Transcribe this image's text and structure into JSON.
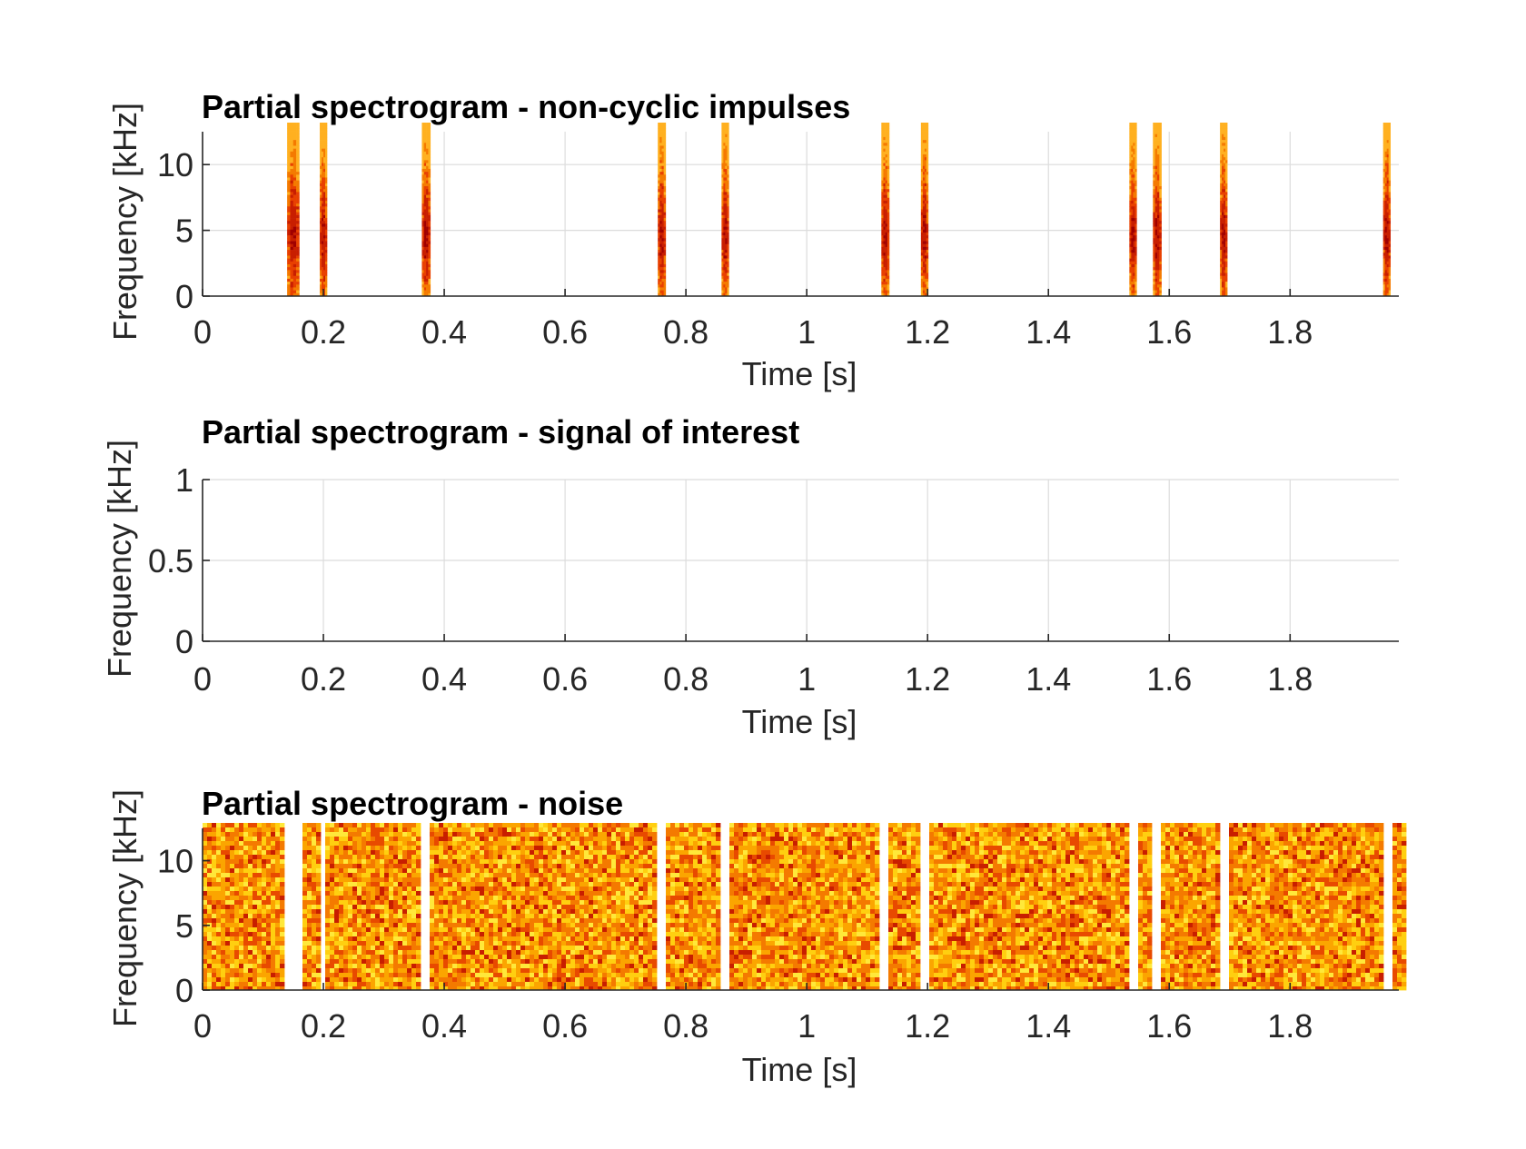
{
  "chart_data": [
    {
      "type": "heatmap",
      "variant": "impulses",
      "title": "Partial spectrogram - non-cyclic impulses",
      "xlabel": "Time [s]",
      "ylabel": "Frequency [kHz]",
      "xlim": [
        0,
        1.98
      ],
      "ylim": [
        0,
        12.5
      ],
      "xticks": [
        0,
        0.2,
        0.4,
        0.6,
        0.8,
        1,
        1.2,
        1.4,
        1.6,
        1.8
      ],
      "xtick_labels": [
        "0",
        "0.2",
        "0.4",
        "0.6",
        "0.8",
        "1",
        "1.2",
        "1.4",
        "1.6",
        "1.8"
      ],
      "yticks": [
        0,
        5,
        10
      ],
      "ytick_labels": [
        "0",
        "5",
        "10"
      ],
      "grid": true,
      "impulse_times": [
        0.15,
        0.2,
        0.37,
        0.76,
        0.865,
        1.13,
        1.195,
        1.54,
        1.58,
        1.69,
        1.96
      ],
      "impulse_widths": [
        0.02,
        0.012,
        0.014,
        0.013,
        0.012,
        0.013,
        0.012,
        0.012,
        0.014,
        0.012,
        0.012
      ],
      "peak_frequency": 5
    },
    {
      "type": "heatmap",
      "variant": "empty",
      "title": "Partial spectrogram - signal of interest",
      "xlabel": "Time [s]",
      "ylabel": "Frequency [kHz]",
      "xlim": [
        0,
        1.98
      ],
      "ylim": [
        0,
        1
      ],
      "xticks": [
        0,
        0.2,
        0.4,
        0.6,
        0.8,
        1,
        1.2,
        1.4,
        1.6,
        1.8
      ],
      "xtick_labels": [
        "0",
        "0.2",
        "0.4",
        "0.6",
        "0.8",
        "1",
        "1.2",
        "1.4",
        "1.6",
        "1.8"
      ],
      "yticks": [
        0,
        0.5,
        1
      ],
      "ytick_labels": [
        "0",
        "0.5",
        "1"
      ],
      "grid": true
    },
    {
      "type": "heatmap",
      "variant": "noise",
      "title": "Partial spectrogram - noise",
      "xlabel": "Time [s]",
      "ylabel": "Frequency [kHz]",
      "xlim": [
        0,
        1.98
      ],
      "ylim": [
        0,
        12.5
      ],
      "xticks": [
        0,
        0.2,
        0.4,
        0.6,
        0.8,
        1,
        1.2,
        1.4,
        1.6,
        1.8
      ],
      "xtick_labels": [
        "0",
        "0.2",
        "0.4",
        "0.6",
        "0.8",
        "1",
        "1.2",
        "1.4",
        "1.6",
        "1.8"
      ],
      "yticks": [
        0,
        5,
        10
      ],
      "ytick_labels": [
        "0",
        "5",
        "10"
      ],
      "grid": false,
      "gap_times": [
        0.15,
        0.2,
        0.37,
        0.76,
        0.865,
        1.13,
        1.195,
        1.54,
        1.58,
        1.69,
        1.96
      ],
      "gap_widths": [
        0.025,
        0.01,
        0.015,
        0.015,
        0.012,
        0.015,
        0.01,
        0.013,
        0.012,
        0.014,
        0.013
      ]
    }
  ],
  "colors": {
    "noise_palette": [
      "#c81e00",
      "#e84a00",
      "#f47a00",
      "#fba500",
      "#ffcf10",
      "#ffe83a"
    ],
    "impulse_core": "#a00000",
    "impulse_mid": "#e84000",
    "impulse_edge": "#ffb020"
  }
}
